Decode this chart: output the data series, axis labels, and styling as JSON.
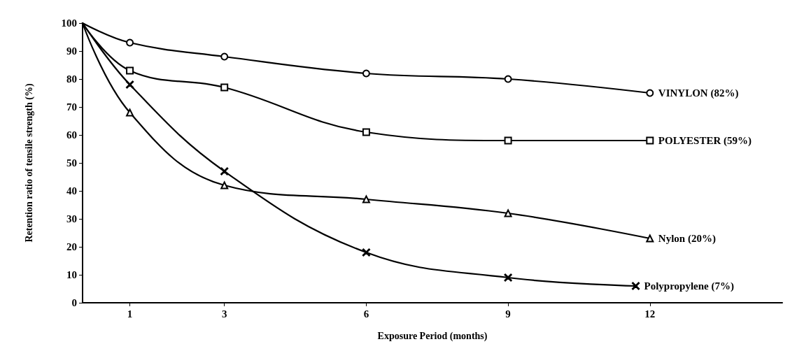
{
  "chart_data": {
    "type": "line",
    "xlabel": "Exposure Period (months)",
    "ylabel": "Retention ratio of tensile strength (%)",
    "x": [
      0,
      1,
      3,
      6,
      9,
      12
    ],
    "xlim": [
      0,
      14.8
    ],
    "xticks": [
      1,
      3,
      6,
      9,
      12
    ],
    "ylim": [
      0,
      100
    ],
    "yticks": [
      0,
      10,
      20,
      30,
      40,
      50,
      60,
      70,
      80,
      90,
      100
    ],
    "grid": false,
    "legend": false,
    "line_style": "solid",
    "series": [
      {
        "name": "VINYLON (82%)",
        "color": "#000000",
        "marker": "circle",
        "values": [
          100,
          93,
          88,
          82,
          80,
          75
        ]
      },
      {
        "name": "POLYESTER (59%)",
        "color": "#000000",
        "marker": "square",
        "values": [
          100,
          83,
          77,
          61,
          58,
          58
        ]
      },
      {
        "name": "Nylon (20%)",
        "color": "#000000",
        "marker": "triangle",
        "values": [
          100,
          68,
          42,
          37,
          32,
          23
        ]
      },
      {
        "name": "Polypropylene (7%)",
        "color": "#000000",
        "marker": "cross",
        "x": [
          0,
          1,
          3,
          6,
          9,
          11.7
        ],
        "values": [
          100,
          78,
          47,
          18,
          9,
          6
        ]
      }
    ]
  }
}
